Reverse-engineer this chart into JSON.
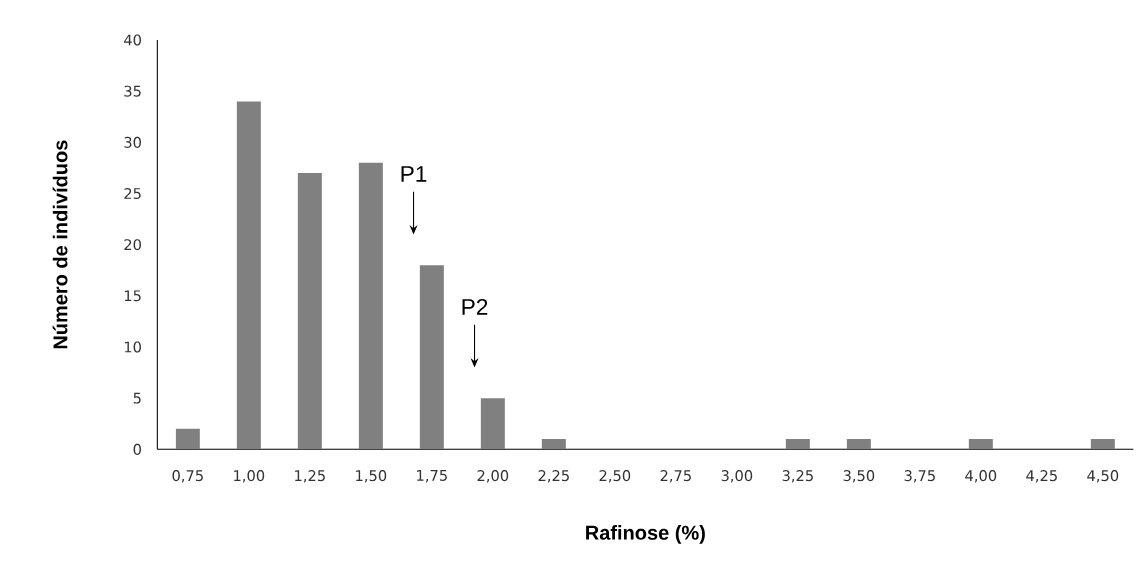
{
  "chart_data": {
    "type": "bar",
    "xlabel": "Rafinose (%)",
    "ylabel": "Número de indivíduos",
    "categories": [
      "0,75",
      "1,00",
      "1,25",
      "1,50",
      "1,75",
      "2,00",
      "2,25",
      "2,50",
      "2,75",
      "3,00",
      "3,25",
      "3,50",
      "3,75",
      "4,00",
      "4,25",
      "4,50"
    ],
    "values": [
      2,
      34,
      27,
      28,
      18,
      5,
      1,
      0,
      0,
      0,
      1,
      1,
      0,
      1,
      0,
      1
    ],
    "color": "#808080",
    "ylim": [
      0,
      40
    ],
    "yticks": [
      0,
      5,
      10,
      15,
      20,
      25,
      30,
      35,
      40
    ],
    "annotations": [
      "P1",
      "P2"
    ]
  }
}
